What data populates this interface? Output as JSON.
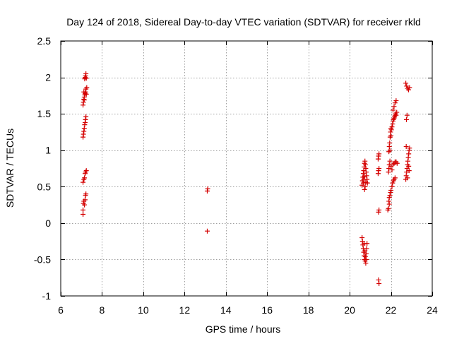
{
  "chart_data": {
    "type": "scatter",
    "title": "Day 124 of 2018, Sidereal Day-to-day VTEC variation (SDTVAR) for receiver rkld",
    "xlabel": "GPS time / hours",
    "ylabel": "SDTVAR / TECUs",
    "xlim": [
      6,
      24
    ],
    "ylim": [
      -1,
      2.5
    ],
    "xticks": [
      6,
      8,
      10,
      12,
      14,
      16,
      18,
      20,
      22,
      24
    ],
    "xtick_labels": [
      "6",
      "8",
      "10",
      "12",
      "14",
      "16",
      "18",
      "20",
      "22",
      "24"
    ],
    "yticks": [
      -1,
      -0.5,
      0,
      0.5,
      1,
      1.5,
      2,
      2.5
    ],
    "ytick_labels": [
      "-1",
      "-0.5",
      "0",
      "0.5",
      "1",
      "1.5",
      "2",
      "2.5"
    ],
    "grid": true,
    "marker": "+",
    "color": "#d40000",
    "series": [
      {
        "name": "SDTVAR",
        "points": [
          [
            7.08,
            0.12
          ],
          [
            7.08,
            0.18
          ],
          [
            7.1,
            0.27
          ],
          [
            7.12,
            0.3
          ],
          [
            7.15,
            0.25
          ],
          [
            7.18,
            0.32
          ],
          [
            7.2,
            0.38
          ],
          [
            7.22,
            0.4
          ],
          [
            7.08,
            0.56
          ],
          [
            7.12,
            0.6
          ],
          [
            7.15,
            0.62
          ],
          [
            7.18,
            0.68
          ],
          [
            7.2,
            0.7
          ],
          [
            7.24,
            0.72
          ],
          [
            7.08,
            1.18
          ],
          [
            7.1,
            1.22
          ],
          [
            7.12,
            1.26
          ],
          [
            7.14,
            1.3
          ],
          [
            7.16,
            1.35
          ],
          [
            7.18,
            1.38
          ],
          [
            7.2,
            1.42
          ],
          [
            7.22,
            1.46
          ],
          [
            7.08,
            1.62
          ],
          [
            7.1,
            1.66
          ],
          [
            7.12,
            1.7
          ],
          [
            7.14,
            1.73
          ],
          [
            7.16,
            1.76
          ],
          [
            7.18,
            1.78
          ],
          [
            7.2,
            1.8
          ],
          [
            7.22,
            1.84
          ],
          [
            7.24,
            1.77
          ],
          [
            7.26,
            1.86
          ],
          [
            7.12,
            1.8
          ],
          [
            7.14,
            1.69
          ],
          [
            7.16,
            1.98
          ],
          [
            7.18,
            2.0
          ],
          [
            7.2,
            2.02
          ],
          [
            7.22,
            2.05
          ],
          [
            7.24,
            1.99
          ],
          [
            13.1,
            0.44
          ],
          [
            13.12,
            0.47
          ],
          [
            13.1,
            -0.11
          ],
          [
            20.6,
            -0.2
          ],
          [
            20.62,
            -0.25
          ],
          [
            20.64,
            -0.3
          ],
          [
            20.66,
            -0.35
          ],
          [
            20.68,
            -0.4
          ],
          [
            20.7,
            -0.45
          ],
          [
            20.72,
            -0.5
          ],
          [
            20.75,
            -0.52
          ],
          [
            20.78,
            -0.55
          ],
          [
            20.8,
            -0.5
          ],
          [
            20.8,
            -0.42
          ],
          [
            20.82,
            -0.35
          ],
          [
            20.84,
            -0.28
          ],
          [
            20.7,
            -0.28
          ],
          [
            20.74,
            -0.38
          ],
          [
            20.76,
            -0.46
          ],
          [
            20.6,
            0.52
          ],
          [
            20.62,
            0.58
          ],
          [
            20.64,
            0.63
          ],
          [
            20.66,
            0.68
          ],
          [
            20.68,
            0.72
          ],
          [
            20.7,
            0.77
          ],
          [
            20.72,
            0.82
          ],
          [
            20.74,
            0.85
          ],
          [
            20.76,
            0.8
          ],
          [
            20.78,
            0.75
          ],
          [
            20.8,
            0.7
          ],
          [
            20.82,
            0.65
          ],
          [
            20.84,
            0.6
          ],
          [
            20.86,
            0.55
          ],
          [
            20.72,
            0.46
          ],
          [
            20.75,
            0.5
          ],
          [
            20.78,
            0.56
          ],
          [
            20.68,
            0.6
          ],
          [
            20.72,
            0.64
          ],
          [
            20.66,
            0.55
          ],
          [
            21.4,
            0.15
          ],
          [
            21.42,
            0.18
          ],
          [
            21.38,
            0.68
          ],
          [
            21.4,
            0.72
          ],
          [
            21.42,
            0.75
          ],
          [
            21.38,
            0.88
          ],
          [
            21.4,
            0.92
          ],
          [
            21.42,
            0.95
          ],
          [
            21.4,
            -0.78
          ],
          [
            21.42,
            -0.83
          ],
          [
            21.85,
            0.18
          ],
          [
            21.88,
            0.2
          ],
          [
            21.9,
            0.3
          ],
          [
            21.92,
            0.35
          ],
          [
            21.95,
            0.38
          ],
          [
            21.98,
            0.42
          ],
          [
            22.0,
            0.45
          ],
          [
            22.05,
            0.5
          ],
          [
            22.08,
            0.55
          ],
          [
            22.12,
            0.58
          ],
          [
            22.15,
            0.6
          ],
          [
            22.2,
            0.62
          ],
          [
            21.92,
            0.26
          ],
          [
            21.88,
            0.7
          ],
          [
            21.9,
            0.75
          ],
          [
            21.92,
            0.8
          ],
          [
            21.95,
            0.85
          ],
          [
            22.0,
            0.78
          ],
          [
            22.05,
            0.73
          ],
          [
            22.1,
            0.8
          ],
          [
            22.15,
            0.82
          ],
          [
            22.2,
            0.84
          ],
          [
            22.25,
            0.84
          ],
          [
            22.3,
            0.82
          ],
          [
            21.9,
            0.98
          ],
          [
            21.92,
            1.05
          ],
          [
            21.94,
            1.1
          ],
          [
            21.96,
            1.18
          ],
          [
            21.98,
            1.25
          ],
          [
            22.0,
            1.3
          ],
          [
            22.02,
            1.28
          ],
          [
            22.05,
            1.32
          ],
          [
            22.08,
            1.36
          ],
          [
            22.1,
            1.4
          ],
          [
            22.12,
            1.42
          ],
          [
            22.15,
            1.44
          ],
          [
            22.18,
            1.46
          ],
          [
            22.2,
            1.48
          ],
          [
            22.22,
            1.5
          ],
          [
            22.25,
            1.48
          ],
          [
            22.28,
            1.52
          ],
          [
            21.95,
            1.0
          ],
          [
            22.0,
            1.2
          ],
          [
            22.1,
            1.55
          ],
          [
            22.15,
            1.6
          ],
          [
            22.2,
            1.65
          ],
          [
            22.25,
            1.68
          ],
          [
            22.72,
            0.6
          ],
          [
            22.74,
            0.65
          ],
          [
            22.76,
            0.7
          ],
          [
            22.78,
            0.75
          ],
          [
            22.8,
            0.8
          ],
          [
            22.82,
            0.85
          ],
          [
            22.84,
            0.9
          ],
          [
            22.86,
            0.95
          ],
          [
            22.88,
            1.0
          ],
          [
            22.9,
            1.03
          ],
          [
            22.74,
            1.05
          ],
          [
            22.8,
            0.62
          ],
          [
            22.86,
            0.78
          ],
          [
            22.88,
            0.72
          ],
          [
            22.75,
            1.42
          ],
          [
            22.78,
            1.48
          ],
          [
            22.72,
            1.92
          ],
          [
            22.76,
            1.88
          ],
          [
            22.8,
            1.85
          ],
          [
            22.85,
            1.83
          ],
          [
            22.9,
            1.86
          ]
        ]
      }
    ]
  }
}
